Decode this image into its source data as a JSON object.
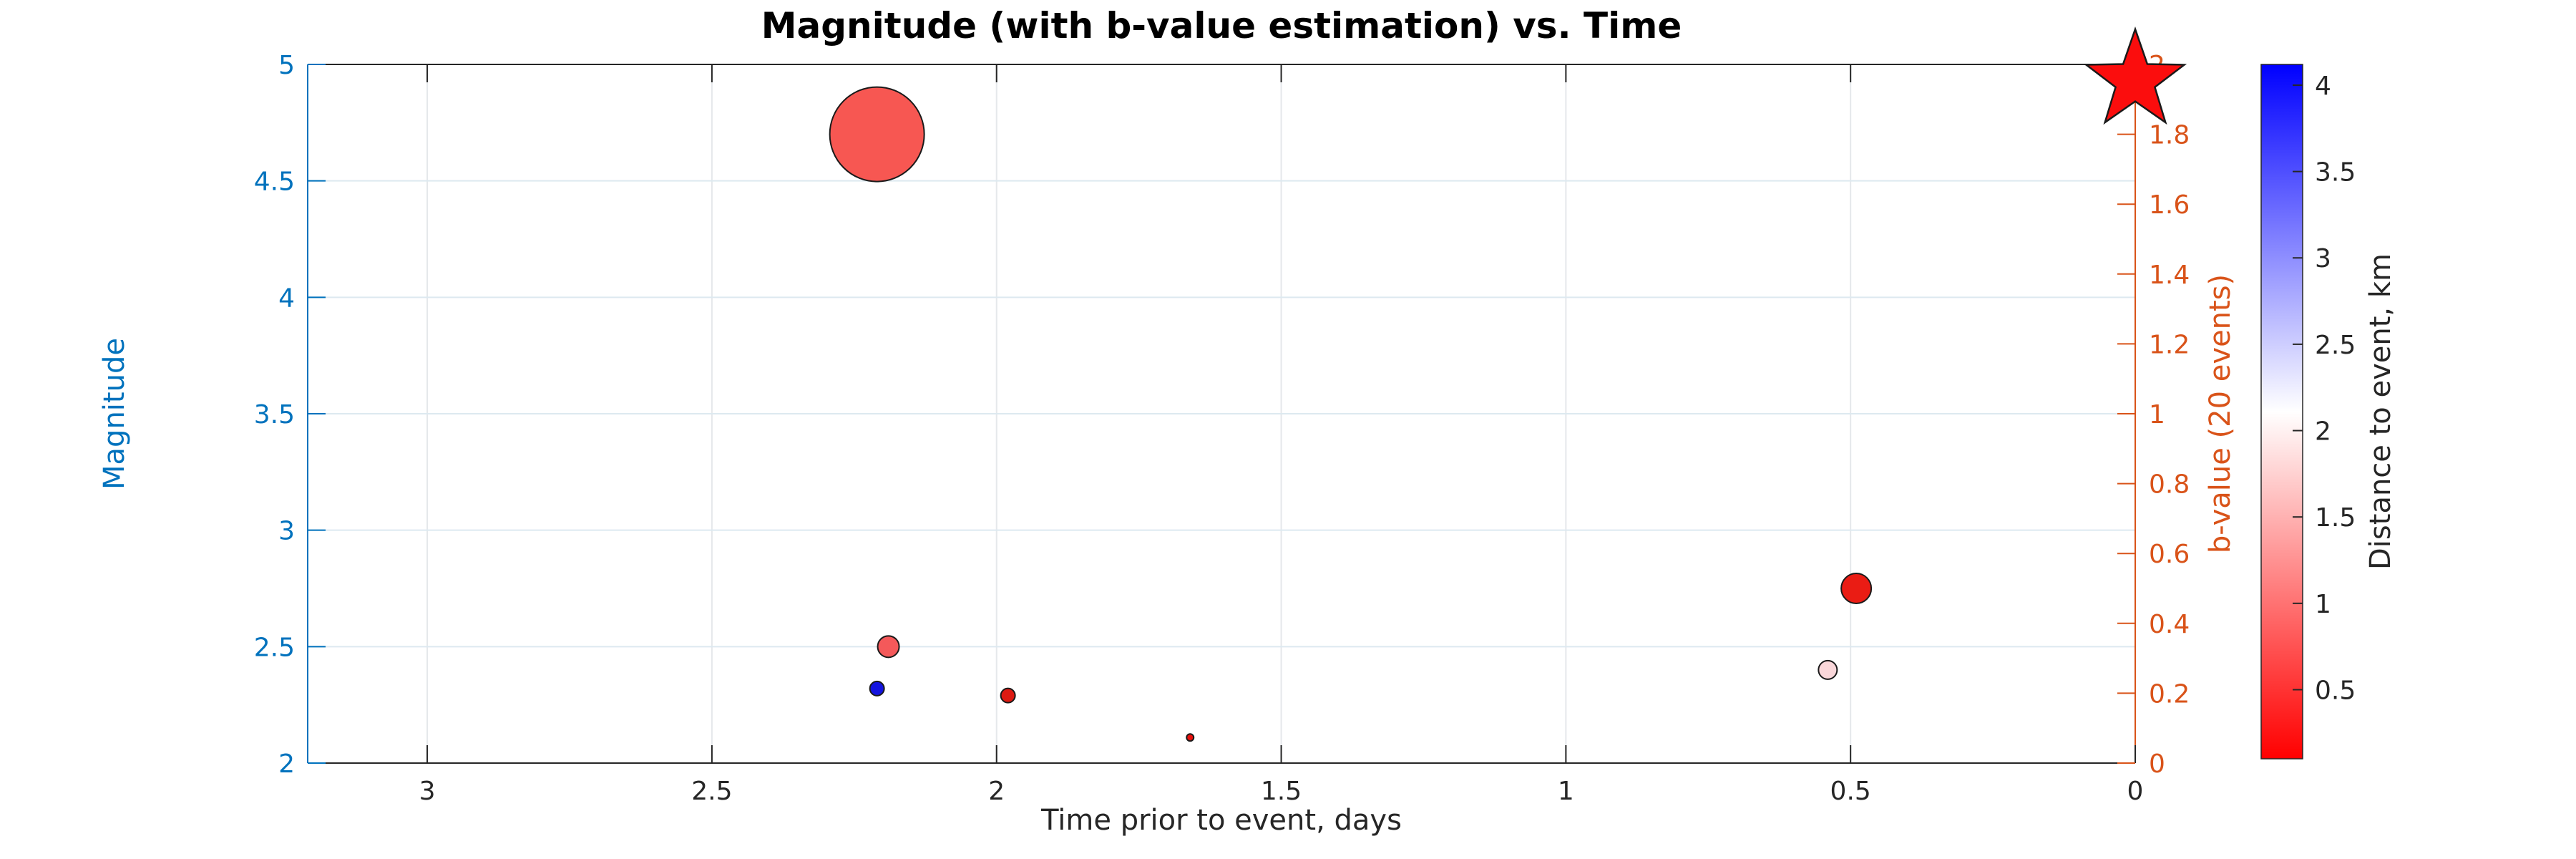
{
  "colors": {
    "background": "#ffffff",
    "left_axis": "#0072BD",
    "right_axis": "#D95319",
    "box_axis": "#262626",
    "grid_horizontal": "#dde9f0",
    "grid_vertical": "#e5e8eb",
    "marker_edge": "#1a1a1a",
    "star_fill": "#FB0D0D"
  },
  "chart_data": {
    "type": "scatter",
    "title": "Magnitude (with b-value estimation) vs. Time",
    "xlabel": "Time prior to event, days",
    "ylabel_left": "Magnitude",
    "ylabel_right": "b-value (20 events)",
    "colorbar_label": "Distance to event, km",
    "x_axis": {
      "min": 0,
      "max": 3.21,
      "reversed": true,
      "ticks": [
        3,
        2.5,
        2,
        1.5,
        1,
        0.5,
        0
      ],
      "tick_labels": [
        "3",
        "2.5",
        "2",
        "1.5",
        "1",
        "0.5",
        "0"
      ],
      "grid": true
    },
    "y_axis_left": {
      "min": 2,
      "max": 5,
      "ticks": [
        2,
        2.5,
        3,
        3.5,
        4,
        4.5,
        5
      ],
      "tick_labels": [
        "2",
        "2.5",
        "3",
        "3.5",
        "4",
        "4.5",
        "5"
      ],
      "grid": true
    },
    "y_axis_right": {
      "min": 0,
      "max": 2,
      "ticks": [
        0,
        0.2,
        0.4,
        0.6,
        0.8,
        1,
        1.2,
        1.4,
        1.6,
        1.8,
        2
      ],
      "tick_labels": [
        "0",
        "0.2",
        "0.4",
        "0.6",
        "0.8",
        "1",
        "1.2",
        "1.4",
        "1.6",
        "1.8",
        "2"
      ],
      "grid": false
    },
    "colorbar": {
      "min": 0.1,
      "max": 4.12,
      "ticks": [
        0.5,
        1,
        1.5,
        2,
        2.5,
        3,
        3.5,
        4
      ],
      "tick_labels": [
        "0.5",
        "1",
        "1.5",
        "2",
        "2.5",
        "3",
        "3.5",
        "4"
      ],
      "gradient_bottom_to_top": [
        "#ff0000",
        "#ffffff",
        "#0000ff"
      ]
    },
    "points": [
      {
        "time": 2.21,
        "magnitude": 4.7,
        "distance_km": 0.8,
        "radius_px": 66,
        "color": "#F75752"
      },
      {
        "time": 2.19,
        "magnitude": 2.5,
        "distance_km": 0.8,
        "radius_px": 15,
        "color": "#F4595A"
      },
      {
        "time": 2.21,
        "magnitude": 2.32,
        "distance_km": 4.0,
        "radius_px": 10,
        "color": "#1414DF"
      },
      {
        "time": 1.98,
        "magnitude": 2.29,
        "distance_km": 0.25,
        "radius_px": 10,
        "color": "#DD1A12"
      },
      {
        "time": 1.66,
        "magnitude": 2.11,
        "distance_km": 0.25,
        "radius_px": 5,
        "color": "#E8100C"
      },
      {
        "time": 0.54,
        "magnitude": 2.4,
        "distance_km": 1.85,
        "radius_px": 13,
        "color": "#FAD7DA"
      },
      {
        "time": 0.49,
        "magnitude": 2.75,
        "distance_km": 0.35,
        "radius_px": 21,
        "color": "#EA1C14"
      }
    ],
    "main_event": {
      "marker": "star",
      "time": 0,
      "magnitude": 4.93,
      "color": "#FB0D0D",
      "outer_radius_px": 72
    }
  }
}
